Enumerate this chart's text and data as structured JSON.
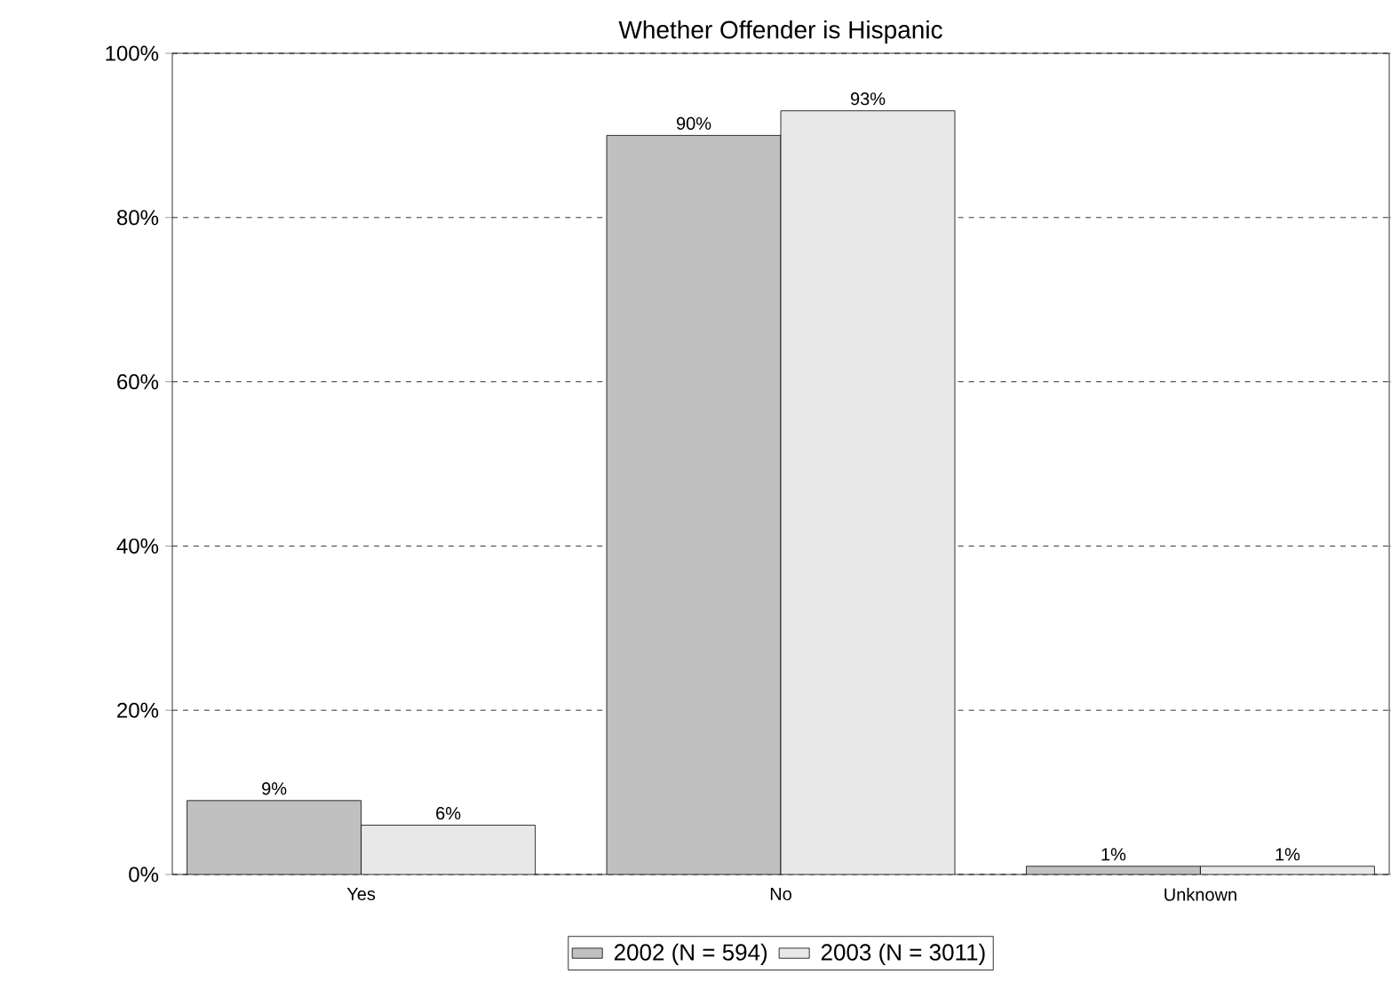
{
  "chart_data": {
    "type": "bar",
    "title": "Whether Offender is Hispanic",
    "categories": [
      "Yes",
      "No",
      "Unknown"
    ],
    "series": [
      {
        "name": "2002 (N = 594)",
        "color": "#c0c0c0",
        "values": [
          9,
          90,
          1
        ],
        "value_labels": [
          "9%",
          "90%",
          "1%"
        ]
      },
      {
        "name": "2003 (N = 3011)",
        "color": "#e8e8e8",
        "values": [
          6,
          93,
          1
        ],
        "value_labels": [
          "6%",
          "93%",
          "1%"
        ]
      }
    ],
    "ylim": [
      0,
      100
    ],
    "yticks": [
      {
        "value": 0,
        "label": "0%"
      },
      {
        "value": 20,
        "label": "20%"
      },
      {
        "value": 40,
        "label": "40%"
      },
      {
        "value": 60,
        "label": "60%"
      },
      {
        "value": 80,
        "label": "80%"
      },
      {
        "value": 100,
        "label": "100%"
      }
    ],
    "grid": "y",
    "legend": "bottom"
  }
}
